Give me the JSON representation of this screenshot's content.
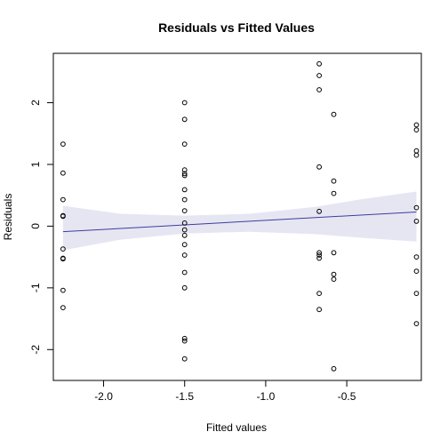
{
  "chart_data": {
    "type": "scatter",
    "title": "Residuals vs Fitted Values",
    "xlabel": "Fitted values",
    "ylabel": "Residuals",
    "xlim": [
      -2.31,
      -0.04
    ],
    "ylim": [
      -2.5,
      2.8
    ],
    "xticks": [
      -2.0,
      -1.5,
      -1.0,
      -0.5
    ],
    "xtick_labels": [
      "-2.0",
      "-1.5",
      "-1.0",
      "-0.5"
    ],
    "yticks": [
      -2,
      -1,
      0,
      1,
      2
    ],
    "ytick_labels": [
      "-2",
      "-1",
      "0",
      "1",
      "2"
    ],
    "points": [
      [
        -2.25,
        1.33
      ],
      [
        -2.25,
        0.86
      ],
      [
        -2.25,
        0.43
      ],
      [
        -2.25,
        0.17
      ],
      [
        -2.25,
        0.16
      ],
      [
        -2.25,
        -0.37
      ],
      [
        -2.25,
        -0.52
      ],
      [
        -2.25,
        -0.53
      ],
      [
        -2.25,
        -1.04
      ],
      [
        -2.25,
        -1.32
      ],
      [
        -1.5,
        2.0
      ],
      [
        -1.5,
        1.73
      ],
      [
        -1.5,
        1.33
      ],
      [
        -1.5,
        0.91
      ],
      [
        -1.5,
        0.85
      ],
      [
        -1.5,
        0.82
      ],
      [
        -1.5,
        0.59
      ],
      [
        -1.5,
        0.43
      ],
      [
        -1.5,
        0.25
      ],
      [
        -1.5,
        0.05
      ],
      [
        -1.5,
        -0.06
      ],
      [
        -1.5,
        -0.15
      ],
      [
        -1.5,
        -0.3
      ],
      [
        -1.5,
        -0.47
      ],
      [
        -1.5,
        -0.75
      ],
      [
        -1.5,
        -1.0
      ],
      [
        -1.5,
        -1.82
      ],
      [
        -1.5,
        -1.86
      ],
      [
        -1.5,
        -2.15
      ],
      [
        -0.67,
        2.63
      ],
      [
        -0.67,
        2.44
      ],
      [
        -0.67,
        2.21
      ],
      [
        -0.67,
        0.96
      ],
      [
        -0.67,
        0.24
      ],
      [
        -0.67,
        -0.43
      ],
      [
        -0.67,
        -0.47
      ],
      [
        -0.67,
        -0.52
      ],
      [
        -0.67,
        -1.09
      ],
      [
        -0.67,
        -1.35
      ],
      [
        -0.58,
        1.81
      ],
      [
        -0.58,
        0.73
      ],
      [
        -0.58,
        0.53
      ],
      [
        -0.58,
        -0.43
      ],
      [
        -0.58,
        -0.78
      ],
      [
        -0.58,
        -0.86
      ],
      [
        -0.58,
        -2.31
      ],
      [
        -0.07,
        1.64
      ],
      [
        -0.07,
        1.56
      ],
      [
        -0.07,
        1.22
      ],
      [
        -0.07,
        1.15
      ],
      [
        -0.07,
        0.3
      ],
      [
        -0.07,
        0.08
      ],
      [
        -0.07,
        -0.5
      ],
      [
        -0.07,
        -0.73
      ],
      [
        -0.07,
        -1.09
      ],
      [
        -0.07,
        -1.58
      ]
    ],
    "fit_line": {
      "x": [
        -2.25,
        -0.07
      ],
      "y": [
        -0.09,
        0.23
      ]
    },
    "confidence_band": {
      "x": [
        -2.25,
        -1.9,
        -1.5,
        -1.1,
        -0.7,
        -0.4,
        -0.07
      ],
      "lower": [
        -0.39,
        -0.22,
        -0.12,
        -0.09,
        -0.13,
        -0.19,
        -0.25
      ],
      "upper": [
        0.33,
        0.2,
        0.17,
        0.2,
        0.31,
        0.44,
        0.56
      ]
    },
    "colors": {
      "points": "#000000",
      "fit_line": "#3c3c9c",
      "band": "#e6e6f3"
    },
    "grid": false,
    "legend": "none"
  }
}
